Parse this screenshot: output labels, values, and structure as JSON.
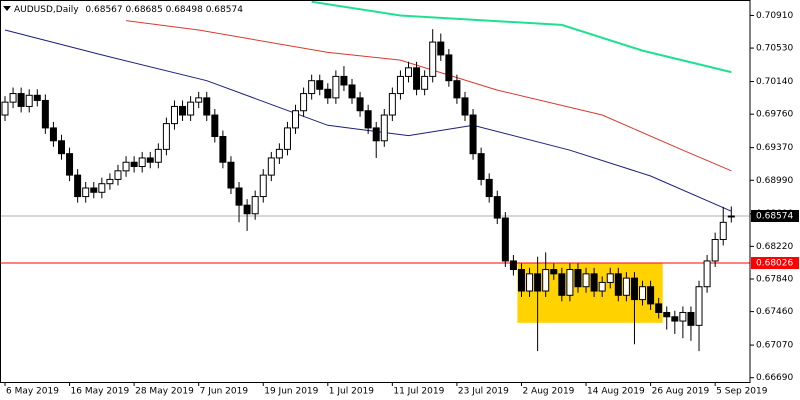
{
  "chart_data": {
    "type": "candlestick",
    "title": "AUDUSD,Daily",
    "categories": [
      "6 May 2019",
      null,
      null,
      null,
      null,
      null,
      null,
      null,
      "16 May 2019",
      null,
      null,
      null,
      null,
      null,
      null,
      null,
      "28 May 2019",
      null,
      null,
      null,
      null,
      null,
      null,
      null,
      "7 Jun 2019",
      null,
      null,
      null,
      null,
      null,
      null,
      null,
      "19 Jun 2019",
      null,
      null,
      null,
      null,
      null,
      null,
      null,
      "1 Jul 2019",
      null,
      null,
      null,
      null,
      null,
      null,
      null,
      "11 Jul 2019",
      null,
      null,
      null,
      null,
      null,
      null,
      null,
      "23 Jul 2019",
      null,
      null,
      null,
      null,
      null,
      null,
      null,
      "2 Aug 2019",
      null,
      null,
      null,
      null,
      null,
      null,
      null,
      "14 Aug 2019",
      null,
      null,
      null,
      null,
      null,
      null,
      null,
      "26 Aug 2019",
      null,
      null,
      null,
      null,
      null,
      null,
      null,
      "5 Sep 2019",
      null,
      null
    ],
    "open": [
      0.6975,
      0.699,
      0.7,
      0.6985,
      0.6998,
      0.6992,
      0.696,
      0.6945,
      0.693,
      0.6905,
      0.688,
      0.689,
      0.6885,
      0.6895,
      0.69,
      0.691,
      0.692,
      0.6915,
      0.6925,
      0.692,
      0.6935,
      0.6965,
      0.6985,
      0.6975,
      0.699,
      0.6995,
      0.6975,
      0.695,
      0.692,
      0.689,
      0.687,
      0.686,
      0.688,
      0.6905,
      0.6925,
      0.6935,
      0.696,
      0.698,
      0.7,
      0.7015,
      0.7005,
      0.6995,
      0.702,
      0.701,
      0.6995,
      0.698,
      0.696,
      0.6945,
      0.6975,
      0.7,
      0.702,
      0.703,
      0.7005,
      0.702,
      0.706,
      0.7045,
      0.7015,
      0.6995,
      0.6975,
      0.693,
      0.69,
      0.688,
      0.6855,
      0.6805,
      0.6795,
      0.677,
      0.679,
      0.677,
      0.6795,
      0.679,
      0.6765,
      0.6795,
      0.6775,
      0.679,
      0.677,
      0.678,
      0.679,
      0.6765,
      0.6785,
      0.676,
      0.6775,
      0.6755,
      0.6745,
      0.674,
      0.6735,
      0.6745,
      0.673,
      0.6775,
      0.6805,
      0.683,
      0.68567
    ],
    "high": [
      0.6997,
      0.7007,
      0.7007,
      0.7005,
      0.7005,
      0.6999,
      0.6967,
      0.6952,
      0.6937,
      0.6912,
      0.6897,
      0.6897,
      0.6902,
      0.6907,
      0.6917,
      0.6927,
      0.6927,
      0.6932,
      0.6932,
      0.6942,
      0.6972,
      0.6992,
      0.6992,
      0.6997,
      0.7002,
      0.7002,
      0.6982,
      0.6957,
      0.6927,
      0.6897,
      0.6877,
      0.6887,
      0.6912,
      0.6932,
      0.6942,
      0.6967,
      0.6987,
      0.7007,
      0.7022,
      0.7022,
      0.7012,
      0.7027,
      0.7032,
      0.7017,
      0.7002,
      0.6987,
      0.6967,
      0.6982,
      0.7007,
      0.7027,
      0.7037,
      0.7037,
      0.7027,
      0.7075,
      0.707,
      0.7052,
      0.7022,
      0.7002,
      0.6982,
      0.6937,
      0.6907,
      0.6887,
      0.6862,
      0.6812,
      0.6802,
      0.6797,
      0.681,
      0.6815,
      0.6802,
      0.6797,
      0.6802,
      0.6802,
      0.6797,
      0.6797,
      0.6787,
      0.6797,
      0.6797,
      0.6792,
      0.6792,
      0.6782,
      0.6782,
      0.6762,
      0.6752,
      0.6747,
      0.6752,
      0.6752,
      0.6782,
      0.6812,
      0.6838,
      0.6868,
      0.68685
    ],
    "low": [
      0.6968,
      0.6983,
      0.6978,
      0.6978,
      0.6985,
      0.6953,
      0.6938,
      0.6923,
      0.6898,
      0.6873,
      0.6873,
      0.6878,
      0.6878,
      0.6888,
      0.6893,
      0.6903,
      0.6908,
      0.6908,
      0.6913,
      0.6913,
      0.6928,
      0.6958,
      0.6968,
      0.6968,
      0.6983,
      0.6968,
      0.6943,
      0.6913,
      0.6883,
      0.685,
      0.684,
      0.6853,
      0.6873,
      0.6898,
      0.6918,
      0.6928,
      0.6953,
      0.6973,
      0.6993,
      0.6998,
      0.6988,
      0.6988,
      0.7003,
      0.6988,
      0.6973,
      0.6953,
      0.6925,
      0.6938,
      0.6968,
      0.6993,
      0.7013,
      0.6998,
      0.6998,
      0.7013,
      0.7038,
      0.7008,
      0.6988,
      0.6968,
      0.6923,
      0.6893,
      0.6873,
      0.6848,
      0.6798,
      0.6788,
      0.6763,
      0.6763,
      0.67,
      0.6763,
      0.6783,
      0.6758,
      0.6758,
      0.6768,
      0.6768,
      0.6763,
      0.6763,
      0.6773,
      0.6758,
      0.6758,
      0.6708,
      0.6753,
      0.6748,
      0.6738,
      0.6725,
      0.672,
      0.6715,
      0.6712,
      0.67,
      0.6768,
      0.6798,
      0.6823,
      0.68498
    ],
    "close": [
      0.699,
      0.7,
      0.6985,
      0.6998,
      0.6992,
      0.696,
      0.6945,
      0.693,
      0.6905,
      0.688,
      0.689,
      0.6885,
      0.6895,
      0.69,
      0.691,
      0.692,
      0.6915,
      0.6925,
      0.692,
      0.6935,
      0.6965,
      0.6985,
      0.6975,
      0.699,
      0.6995,
      0.6975,
      0.695,
      0.692,
      0.689,
      0.687,
      0.686,
      0.688,
      0.6905,
      0.6925,
      0.6935,
      0.696,
      0.698,
      0.7,
      0.7015,
      0.7005,
      0.6995,
      0.702,
      0.701,
      0.6995,
      0.698,
      0.696,
      0.6945,
      0.6975,
      0.7,
      0.702,
      0.703,
      0.7005,
      0.702,
      0.706,
      0.7045,
      0.7015,
      0.6995,
      0.6975,
      0.693,
      0.69,
      0.688,
      0.6855,
      0.6805,
      0.6795,
      0.677,
      0.679,
      0.677,
      0.6795,
      0.679,
      0.6765,
      0.6795,
      0.6775,
      0.679,
      0.677,
      0.678,
      0.679,
      0.6765,
      0.6785,
      0.676,
      0.6775,
      0.6755,
      0.6745,
      0.674,
      0.6735,
      0.6745,
      0.673,
      0.6775,
      0.6805,
      0.683,
      0.685,
      0.68574
    ],
    "up_color": "#ffffff",
    "down_color": "#000000",
    "lines": [
      {
        "color": "#1a1f7a",
        "x": [
          0,
          12,
          25,
          40,
          50,
          58,
          70,
          80,
          90
        ],
        "values": [
          0.7074,
          0.7045,
          0.7015,
          0.6963,
          0.6951,
          0.6963,
          0.6934,
          0.6904,
          0.6863
        ]
      },
      {
        "color": "#d83a2e",
        "x": [
          15,
          24,
          40,
          49,
          61,
          74,
          84,
          90
        ],
        "values": [
          0.7085,
          0.7074,
          0.7048,
          0.7039,
          0.7004,
          0.6975,
          0.6934,
          0.691
        ]
      },
      {
        "color": "#20e090",
        "x": [
          38,
          49,
          69,
          79,
          90
        ],
        "values": [
          0.7107,
          0.7091,
          0.708,
          0.705,
          0.7025
        ]
      }
    ],
    "levels": [
      {
        "value": 0.68026,
        "color": "#ff0000"
      }
    ],
    "price_line_color": "#b0b0b0",
    "rectangle": {
      "start": 64,
      "end": 81,
      "low": 0.6733,
      "high": 0.6802,
      "color": "#ffd200"
    },
    "ylim": [
      0.6664,
      0.7109
    ],
    "yticks": [
      {
        "value": 0.7091,
        "label": "0.70910"
      },
      {
        "value": 0.7053,
        "label": "0.70530"
      },
      {
        "value": 0.7014,
        "label": "0.70140"
      },
      {
        "value": 0.6976,
        "label": "0.69760"
      },
      {
        "value": 0.6937,
        "label": "0.69370"
      },
      {
        "value": 0.6899,
        "label": "0.68990"
      },
      {
        "value": 0.686,
        "label": "0.68600"
      },
      {
        "value": 0.6822,
        "label": "0.68220"
      },
      {
        "value": 0.6784,
        "label": "0.67840"
      },
      {
        "value": 0.6746,
        "label": "0.67460"
      },
      {
        "value": 0.6707,
        "label": "0.67070"
      },
      {
        "value": 0.6669,
        "label": "0.66690"
      }
    ]
  }
}
